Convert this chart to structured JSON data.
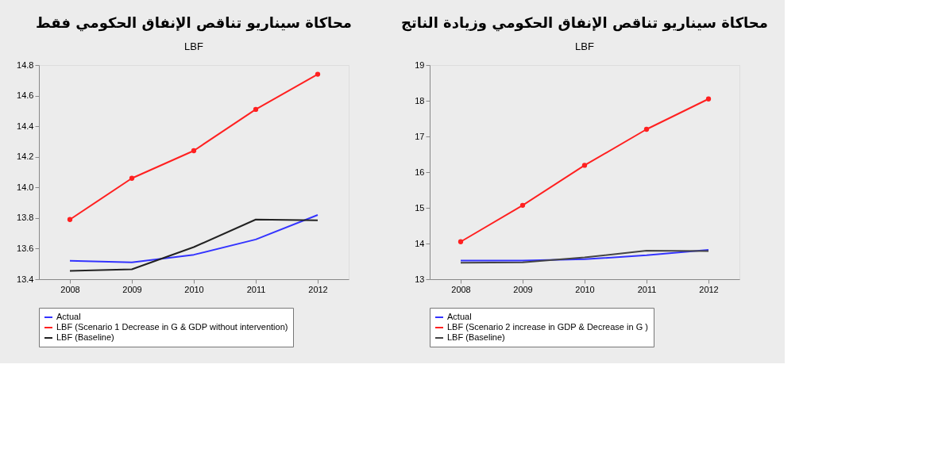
{
  "chart_data": [
    {
      "type": "line",
      "title": "محاكاة سيناريو تناقص الإنفاق الحكومي فقط",
      "subtitle": "LBF",
      "categories": [
        "2008",
        "2009",
        "2010",
        "2011",
        "2012"
      ],
      "ylim": [
        13.4,
        14.8
      ],
      "yticks": [
        13.4,
        13.6,
        13.8,
        {
          "value": 14.0,
          "label": "14.0"
        },
        14.2,
        14.4,
        14.6,
        14.8
      ],
      "grid": false,
      "legend": "bottom",
      "series": [
        {
          "name": "Actual",
          "color": "#3333ff",
          "marker": "none",
          "values": [
            13.52,
            13.51,
            13.56,
            13.66,
            13.82
          ]
        },
        {
          "name": "LBF (Scenario 1 Decrease in G & GDP without intervention)",
          "color": "#ff2020",
          "marker": "circle",
          "values": [
            13.79,
            14.06,
            14.24,
            14.51,
            14.74
          ]
        },
        {
          "name": "LBF (Baseline)",
          "color": "#222222",
          "marker": "none",
          "values": [
            13.455,
            13.465,
            13.61,
            13.79,
            13.785
          ]
        }
      ]
    },
    {
      "type": "line",
      "title": "محاكاة سيناريو تناقص الإنفاق الحكومي وزيادة الناتج",
      "subtitle": "LBF",
      "categories": [
        "2008",
        "2009",
        "2010",
        "2011",
        "2012"
      ],
      "ylim": [
        13,
        19
      ],
      "yticks": [
        13,
        14,
        15,
        16,
        17,
        18,
        19
      ],
      "grid": false,
      "legend": "bottom",
      "series": [
        {
          "name": "Actual",
          "color": "#3333ff",
          "marker": "none",
          "values": [
            13.52,
            13.52,
            13.56,
            13.67,
            13.82
          ]
        },
        {
          "name": "LBF (Scenario 2 increase in GDP & Decrease in G )",
          "color": "#ff2020",
          "marker": "circle",
          "values": [
            14.05,
            15.07,
            16.19,
            17.2,
            18.05
          ]
        },
        {
          "name": "LBF (Baseline)",
          "color": "#444444",
          "marker": "none",
          "values": [
            13.46,
            13.47,
            13.61,
            13.8,
            13.79
          ]
        }
      ]
    }
  ]
}
